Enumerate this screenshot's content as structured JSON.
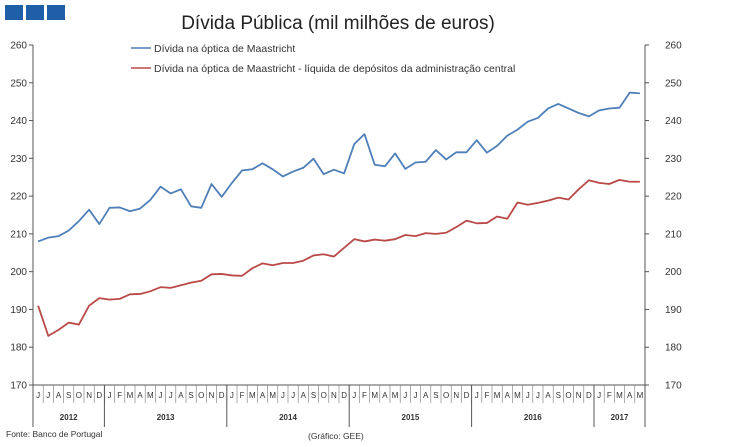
{
  "logo_colors": [
    "#1f5fa8",
    "#1f5fa8",
    "#1f5fa8"
  ],
  "colors": {
    "series1": "#4f7fb8",
    "series2": "#b94a48"
  },
  "source": "Fonte: Banco de Portugal",
  "credit": "(Gráfico: GEE)",
  "chart_data": {
    "type": "line",
    "title": "Dívida Pública (mil milhões de euros)",
    "ylim": [
      170,
      260
    ],
    "yticks": [
      "170",
      "180",
      "190",
      "200",
      "210",
      "220",
      "230",
      "240",
      "250",
      "260"
    ],
    "y2ticks": [
      "170",
      "180",
      "190",
      "200",
      "210",
      "220",
      "230",
      "240",
      "250",
      "260"
    ],
    "grid": false,
    "legend_position": "top",
    "x_month_labels": [
      "J",
      "J",
      "A",
      "S",
      "O",
      "N",
      "D",
      "J",
      "F",
      "M",
      "A",
      "M",
      "J",
      "J",
      "A",
      "S",
      "O",
      "N",
      "D",
      "J",
      "F",
      "M",
      "A",
      "M",
      "J",
      "J",
      "A",
      "S",
      "O",
      "N",
      "D",
      "J",
      "F",
      "M",
      "A",
      "M",
      "J",
      "J",
      "A",
      "S",
      "O",
      "N",
      "D",
      "J",
      "F",
      "M",
      "A",
      "M",
      "J",
      "J",
      "A",
      "S",
      "O",
      "N",
      "D",
      "J",
      "F",
      "M",
      "A",
      "M"
    ],
    "x": [
      "2012-06",
      "2012-07",
      "2012-08",
      "2012-09",
      "2012-10",
      "2012-11",
      "2012-12",
      "2013-01",
      "2013-02",
      "2013-03",
      "2013-04",
      "2013-05",
      "2013-06",
      "2013-07",
      "2013-08",
      "2013-09",
      "2013-10",
      "2013-11",
      "2013-12",
      "2014-01",
      "2014-02",
      "2014-03",
      "2014-04",
      "2014-05",
      "2014-06",
      "2014-07",
      "2014-08",
      "2014-09",
      "2014-10",
      "2014-11",
      "2014-12",
      "2015-01",
      "2015-02",
      "2015-03",
      "2015-04",
      "2015-05",
      "2015-06",
      "2015-07",
      "2015-08",
      "2015-09",
      "2015-10",
      "2015-11",
      "2015-12",
      "2016-01",
      "2016-02",
      "2016-03",
      "2016-04",
      "2016-05",
      "2016-06",
      "2016-07",
      "2016-08",
      "2016-09",
      "2016-10",
      "2016-11",
      "2016-12",
      "2017-01",
      "2017-02",
      "2017-03",
      "2017-04",
      "2017-05"
    ],
    "years": [
      {
        "label": "2012",
        "months": 7
      },
      {
        "label": "2013",
        "months": 12
      },
      {
        "label": "2014",
        "months": 12
      },
      {
        "label": "2015",
        "months": 12
      },
      {
        "label": "2016",
        "months": 12
      },
      {
        "label": "2017",
        "months": 5
      }
    ],
    "series": [
      {
        "name": "Dívida na óptica de Maastricht",
        "values": [
          208.0,
          209.0,
          209.4,
          210.9,
          213.4,
          216.4,
          212.6,
          216.9,
          217.0,
          216.0,
          216.7,
          219.0,
          222.5,
          220.7,
          221.8,
          217.3,
          216.9,
          223.2,
          219.8,
          223.5,
          226.8,
          227.1,
          228.7,
          227.1,
          225.2,
          226.5,
          227.5,
          229.9,
          225.8,
          227.0,
          226.0,
          233.8,
          236.4,
          228.3,
          227.9,
          231.3,
          227.2,
          228.9,
          229.1,
          232.2,
          229.7,
          231.6,
          231.6,
          234.8,
          231.5,
          233.3,
          236.0,
          237.6,
          239.7,
          240.7,
          243.2,
          244.4,
          243.2,
          242.0,
          241.1,
          242.7,
          243.2,
          243.4,
          247.4,
          247.2
        ]
      },
      {
        "name": "Dívida na óptica de Maastricht - líquida de depósitos da administração central",
        "values": [
          191.0,
          183.0,
          184.6,
          186.5,
          186.0,
          191.0,
          193.0,
          192.6,
          192.8,
          194.0,
          194.1,
          194.8,
          195.9,
          195.7,
          196.4,
          197.1,
          197.6,
          199.3,
          199.4,
          199.0,
          198.9,
          200.9,
          202.2,
          201.7,
          202.3,
          202.3,
          202.9,
          204.3,
          204.6,
          204.0,
          206.3,
          208.6,
          208.0,
          208.5,
          208.2,
          208.6,
          209.7,
          209.4,
          210.2,
          210.0,
          210.3,
          211.8,
          213.5,
          212.8,
          212.9,
          214.6,
          214.0,
          218.3,
          217.7,
          218.2,
          218.8,
          219.6,
          219.1,
          221.8,
          224.2,
          223.5,
          223.2,
          224.3,
          223.8,
          223.8
        ]
      }
    ]
  }
}
